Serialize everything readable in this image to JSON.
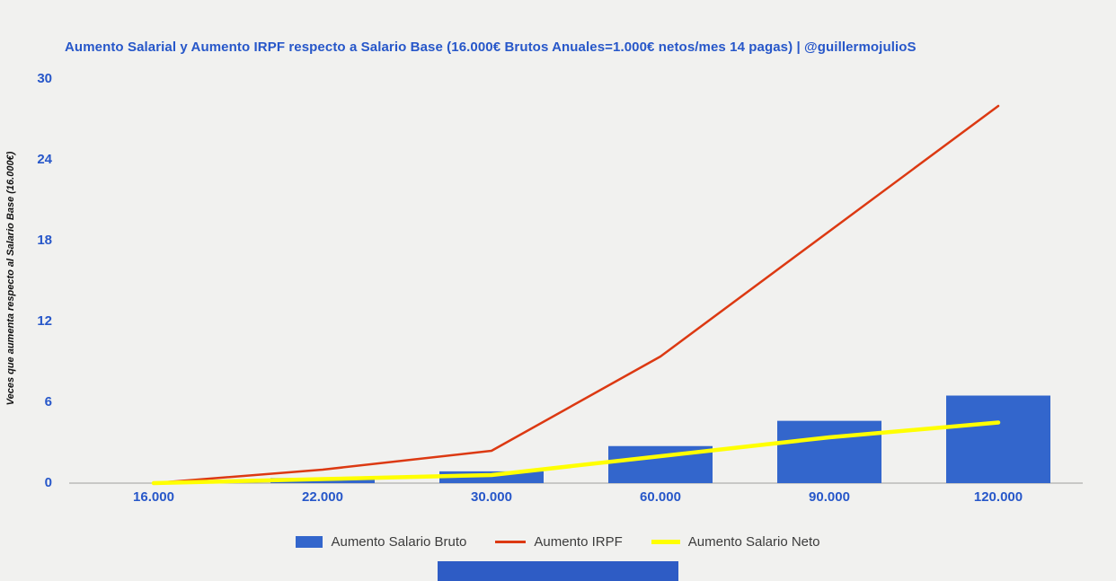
{
  "colors": {
    "background": "#f1f1ef",
    "accent_blue": "#2757c9",
    "bar_blue": "#3366cc",
    "line_red": "#dc3912",
    "line_yellow": "#ffff00",
    "axis_gray": "#9e9e9e",
    "legend_text": "#3c3c3c",
    "footer_bar": "#2e5cc5"
  },
  "chart_data": {
    "type": "bar",
    "title": "Aumento Salarial y Aumento IRPF respecto a Salario Base (16.000€ Brutos Anuales=1.000€ netos/mes 14 pagas) | @guillermojulioS",
    "ylabel": "Veces que aumenta respecto al Salario Base (16.000€)",
    "xlabel": "",
    "categories": [
      "16.000",
      "22.000",
      "30.000",
      "60.000",
      "90.000",
      "120.000"
    ],
    "series": [
      {
        "name": "Aumento Salario Bruto",
        "type": "bar",
        "color": "#3366cc",
        "values": [
          0,
          0.375,
          0.875,
          2.75,
          4.625,
          6.5
        ]
      },
      {
        "name": "Aumento IRPF",
        "type": "line",
        "color": "#dc3912",
        "line_width": 2.5,
        "values": [
          0,
          1.0,
          2.4,
          9.4,
          18.7,
          28.0
        ]
      },
      {
        "name": "Aumento Salario Neto",
        "type": "line",
        "color": "#ffff00",
        "line_width": 4.5,
        "values": [
          0,
          0.3,
          0.6,
          2.0,
          3.4,
          4.5
        ]
      }
    ],
    "ylim": [
      0,
      30
    ],
    "y_ticks": [
      0,
      6,
      12,
      18,
      24,
      30
    ],
    "grid": false,
    "legend_position": "bottom"
  },
  "legend": {
    "items": [
      {
        "label": "Aumento Salario Bruto",
        "color": "#3366cc",
        "swatch": "rect"
      },
      {
        "label": "Aumento IRPF",
        "color": "#dc3912",
        "swatch": "line"
      },
      {
        "label": "Aumento Salario Neto",
        "color": "#ffff00",
        "swatch": "line"
      }
    ]
  }
}
